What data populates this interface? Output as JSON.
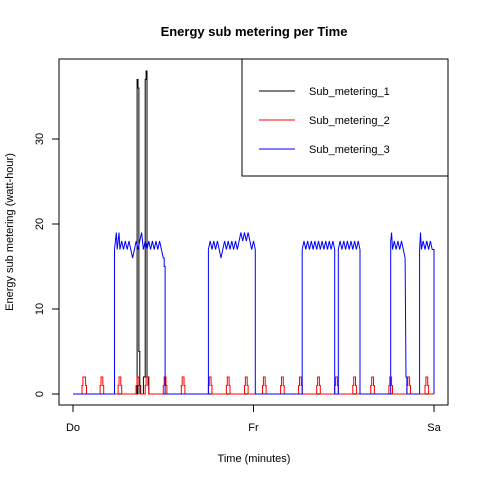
{
  "chart_data": {
    "type": "line",
    "title": "Energy sub metering per Time",
    "xlabel": "Time (minutes)",
    "ylabel": "Energy sub metering (watt-hour)",
    "x_ticks": [
      "Do",
      "Fr",
      "Sa"
    ],
    "x_range_days": [
      0,
      2
    ],
    "ylim": [
      0,
      38
    ],
    "y_ticks": [
      0,
      10,
      20,
      30
    ],
    "legend_position": "top-right",
    "grid": false,
    "series": [
      {
        "name": "Sub_metering_1",
        "color": "#000000",
        "points": [
          [
            0.0,
            0
          ],
          [
            0.35,
            0
          ],
          [
            0.35,
            1
          ],
          [
            0.36,
            1
          ],
          [
            0.36,
            0
          ],
          [
            0.355,
            0
          ],
          [
            0.355,
            37
          ],
          [
            0.36,
            37
          ],
          [
            0.36,
            36
          ],
          [
            0.365,
            36
          ],
          [
            0.365,
            5
          ],
          [
            0.37,
            5
          ],
          [
            0.37,
            1
          ],
          [
            0.375,
            1
          ],
          [
            0.375,
            0
          ],
          [
            0.39,
            0
          ],
          [
            0.39,
            2
          ],
          [
            0.4,
            2
          ],
          [
            0.4,
            37
          ],
          [
            0.405,
            37
          ],
          [
            0.405,
            38
          ],
          [
            0.41,
            38
          ],
          [
            0.41,
            2
          ],
          [
            0.42,
            2
          ],
          [
            0.42,
            0
          ],
          [
            2.0,
            0
          ]
        ]
      },
      {
        "name": "Sub_metering_2",
        "color": "#ff0000",
        "points": [
          [
            0.0,
            0
          ],
          [
            0.05,
            0
          ],
          [
            0.05,
            1
          ],
          [
            0.055,
            1
          ],
          [
            0.055,
            2
          ],
          [
            0.07,
            2
          ],
          [
            0.07,
            1
          ],
          [
            0.075,
            1
          ],
          [
            0.075,
            0
          ],
          [
            0.15,
            0
          ],
          [
            0.15,
            1
          ],
          [
            0.155,
            1
          ],
          [
            0.155,
            2
          ],
          [
            0.165,
            2
          ],
          [
            0.165,
            1
          ],
          [
            0.17,
            1
          ],
          [
            0.17,
            0
          ],
          [
            0.25,
            0
          ],
          [
            0.25,
            1
          ],
          [
            0.255,
            1
          ],
          [
            0.255,
            2
          ],
          [
            0.265,
            2
          ],
          [
            0.265,
            1
          ],
          [
            0.27,
            1
          ],
          [
            0.27,
            0
          ],
          [
            0.35,
            0
          ],
          [
            0.35,
            1
          ],
          [
            0.355,
            1
          ],
          [
            0.355,
            2
          ],
          [
            0.365,
            2
          ],
          [
            0.365,
            1
          ],
          [
            0.37,
            1
          ],
          [
            0.37,
            0
          ],
          [
            0.4,
            0
          ],
          [
            0.4,
            1
          ],
          [
            0.405,
            1
          ],
          [
            0.405,
            2
          ],
          [
            0.415,
            2
          ],
          [
            0.415,
            1
          ],
          [
            0.42,
            1
          ],
          [
            0.42,
            0
          ],
          [
            0.5,
            0
          ],
          [
            0.5,
            1
          ],
          [
            0.505,
            1
          ],
          [
            0.505,
            2
          ],
          [
            0.515,
            2
          ],
          [
            0.515,
            1
          ],
          [
            0.52,
            1
          ],
          [
            0.52,
            0
          ],
          [
            0.6,
            0
          ],
          [
            0.6,
            1
          ],
          [
            0.605,
            1
          ],
          [
            0.605,
            2
          ],
          [
            0.615,
            2
          ],
          [
            0.615,
            1
          ],
          [
            0.62,
            1
          ],
          [
            0.62,
            0
          ],
          [
            0.75,
            0
          ],
          [
            0.75,
            1
          ],
          [
            0.755,
            1
          ],
          [
            0.755,
            2
          ],
          [
            0.765,
            2
          ],
          [
            0.765,
            1
          ],
          [
            0.77,
            1
          ],
          [
            0.77,
            0
          ],
          [
            0.85,
            0
          ],
          [
            0.85,
            1
          ],
          [
            0.855,
            1
          ],
          [
            0.855,
            2
          ],
          [
            0.865,
            2
          ],
          [
            0.865,
            1
          ],
          [
            0.87,
            1
          ],
          [
            0.87,
            0
          ],
          [
            0.95,
            0
          ],
          [
            0.95,
            1
          ],
          [
            0.955,
            1
          ],
          [
            0.955,
            2
          ],
          [
            0.965,
            2
          ],
          [
            0.965,
            1
          ],
          [
            0.97,
            1
          ],
          [
            0.97,
            0
          ],
          [
            1.05,
            0
          ],
          [
            1.05,
            1
          ],
          [
            1.055,
            1
          ],
          [
            1.055,
            2
          ],
          [
            1.065,
            2
          ],
          [
            1.065,
            1
          ],
          [
            1.07,
            1
          ],
          [
            1.07,
            0
          ],
          [
            1.15,
            0
          ],
          [
            1.15,
            1
          ],
          [
            1.155,
            1
          ],
          [
            1.155,
            2
          ],
          [
            1.165,
            2
          ],
          [
            1.165,
            1
          ],
          [
            1.17,
            1
          ],
          [
            1.17,
            0
          ],
          [
            1.25,
            0
          ],
          [
            1.25,
            1
          ],
          [
            1.255,
            1
          ],
          [
            1.255,
            2
          ],
          [
            1.265,
            2
          ],
          [
            1.265,
            1
          ],
          [
            1.27,
            1
          ],
          [
            1.27,
            0
          ],
          [
            1.35,
            0
          ],
          [
            1.35,
            1
          ],
          [
            1.355,
            1
          ],
          [
            1.355,
            2
          ],
          [
            1.365,
            2
          ],
          [
            1.365,
            1
          ],
          [
            1.37,
            1
          ],
          [
            1.37,
            0
          ],
          [
            1.45,
            0
          ],
          [
            1.45,
            1
          ],
          [
            1.455,
            1
          ],
          [
            1.455,
            2
          ],
          [
            1.465,
            2
          ],
          [
            1.465,
            1
          ],
          [
            1.47,
            1
          ],
          [
            1.47,
            0
          ],
          [
            1.55,
            0
          ],
          [
            1.55,
            1
          ],
          [
            1.555,
            1
          ],
          [
            1.555,
            2
          ],
          [
            1.565,
            2
          ],
          [
            1.565,
            1
          ],
          [
            1.57,
            1
          ],
          [
            1.57,
            0
          ],
          [
            1.65,
            0
          ],
          [
            1.65,
            1
          ],
          [
            1.655,
            1
          ],
          [
            1.655,
            2
          ],
          [
            1.665,
            2
          ],
          [
            1.665,
            1
          ],
          [
            1.67,
            1
          ],
          [
            1.67,
            0
          ],
          [
            1.75,
            0
          ],
          [
            1.75,
            1
          ],
          [
            1.755,
            1
          ],
          [
            1.755,
            2
          ],
          [
            1.765,
            2
          ],
          [
            1.765,
            1
          ],
          [
            1.77,
            1
          ],
          [
            1.77,
            0
          ],
          [
            1.85,
            0
          ],
          [
            1.85,
            1
          ],
          [
            1.855,
            1
          ],
          [
            1.855,
            2
          ],
          [
            1.865,
            2
          ],
          [
            1.865,
            1
          ],
          [
            1.87,
            1
          ],
          [
            1.87,
            0
          ],
          [
            1.95,
            0
          ],
          [
            1.95,
            1
          ],
          [
            1.955,
            1
          ],
          [
            1.955,
            2
          ],
          [
            1.965,
            2
          ],
          [
            1.965,
            1
          ],
          [
            1.97,
            1
          ],
          [
            1.97,
            0
          ],
          [
            2.0,
            0
          ]
        ]
      },
      {
        "name": "Sub_metering_3",
        "color": "#0000ff",
        "points": [
          [
            0.0,
            0
          ],
          [
            0.23,
            0
          ],
          [
            0.23,
            17
          ],
          [
            0.235,
            18
          ],
          [
            0.24,
            19
          ],
          [
            0.245,
            17
          ],
          [
            0.25,
            18
          ],
          [
            0.255,
            19
          ],
          [
            0.26,
            17
          ],
          [
            0.27,
            18
          ],
          [
            0.28,
            17
          ],
          [
            0.29,
            18
          ],
          [
            0.3,
            17
          ],
          [
            0.31,
            18
          ],
          [
            0.32,
            17
          ],
          [
            0.33,
            16
          ],
          [
            0.34,
            17
          ],
          [
            0.35,
            18
          ],
          [
            0.36,
            17
          ],
          [
            0.37,
            18
          ],
          [
            0.38,
            19
          ],
          [
            0.39,
            17
          ],
          [
            0.4,
            18
          ],
          [
            0.41,
            17
          ],
          [
            0.42,
            18
          ],
          [
            0.43,
            17
          ],
          [
            0.44,
            18
          ],
          [
            0.45,
            17
          ],
          [
            0.46,
            18
          ],
          [
            0.47,
            17
          ],
          [
            0.48,
            18
          ],
          [
            0.49,
            17
          ],
          [
            0.5,
            16
          ],
          [
            0.505,
            16
          ],
          [
            0.505,
            15
          ],
          [
            0.51,
            15
          ],
          [
            0.51,
            0
          ],
          [
            0.75,
            0
          ],
          [
            0.75,
            17
          ],
          [
            0.76,
            18
          ],
          [
            0.77,
            17
          ],
          [
            0.78,
            18
          ],
          [
            0.79,
            17
          ],
          [
            0.8,
            18
          ],
          [
            0.81,
            17
          ],
          [
            0.82,
            16
          ],
          [
            0.83,
            17
          ],
          [
            0.84,
            18
          ],
          [
            0.85,
            17
          ],
          [
            0.86,
            18
          ],
          [
            0.87,
            17
          ],
          [
            0.88,
            18
          ],
          [
            0.89,
            17
          ],
          [
            0.9,
            18
          ],
          [
            0.91,
            17
          ],
          [
            0.92,
            18
          ],
          [
            0.93,
            19
          ],
          [
            0.94,
            18
          ],
          [
            0.95,
            19
          ],
          [
            0.96,
            18
          ],
          [
            0.97,
            19
          ],
          [
            0.98,
            18
          ],
          [
            0.99,
            17
          ],
          [
            1.0,
            18
          ],
          [
            1.01,
            17
          ],
          [
            1.01,
            0
          ],
          [
            1.27,
            0
          ],
          [
            1.27,
            17
          ],
          [
            1.28,
            18
          ],
          [
            1.29,
            17
          ],
          [
            1.3,
            18
          ],
          [
            1.31,
            17
          ],
          [
            1.32,
            18
          ],
          [
            1.33,
            17
          ],
          [
            1.34,
            18
          ],
          [
            1.35,
            17
          ],
          [
            1.36,
            18
          ],
          [
            1.37,
            17
          ],
          [
            1.38,
            18
          ],
          [
            1.39,
            17
          ],
          [
            1.4,
            18
          ],
          [
            1.41,
            17
          ],
          [
            1.42,
            18
          ],
          [
            1.43,
            17
          ],
          [
            1.44,
            18
          ],
          [
            1.45,
            17
          ],
          [
            1.45,
            0
          ],
          [
            1.47,
            0
          ],
          [
            1.47,
            17
          ],
          [
            1.48,
            18
          ],
          [
            1.49,
            17
          ],
          [
            1.5,
            18
          ],
          [
            1.51,
            17
          ],
          [
            1.52,
            18
          ],
          [
            1.53,
            17
          ],
          [
            1.54,
            18
          ],
          [
            1.55,
            17
          ],
          [
            1.56,
            18
          ],
          [
            1.57,
            17
          ],
          [
            1.58,
            18
          ],
          [
            1.59,
            17
          ],
          [
            1.59,
            0
          ],
          [
            1.76,
            0
          ],
          [
            1.76,
            18
          ],
          [
            1.765,
            19
          ],
          [
            1.77,
            17
          ],
          [
            1.78,
            18
          ],
          [
            1.79,
            17
          ],
          [
            1.8,
            18
          ],
          [
            1.81,
            17
          ],
          [
            1.82,
            18
          ],
          [
            1.83,
            17
          ],
          [
            1.84,
            16
          ],
          [
            1.845,
            2
          ],
          [
            1.85,
            2
          ],
          [
            1.85,
            0
          ],
          [
            1.92,
            0
          ],
          [
            1.92,
            17
          ],
          [
            1.925,
            19
          ],
          [
            1.93,
            17
          ],
          [
            1.94,
            18
          ],
          [
            1.95,
            17
          ],
          [
            1.96,
            18
          ],
          [
            1.97,
            17
          ],
          [
            1.98,
            18
          ],
          [
            1.99,
            17
          ],
          [
            2.0,
            17
          ],
          [
            2.0,
            0
          ]
        ]
      }
    ]
  }
}
